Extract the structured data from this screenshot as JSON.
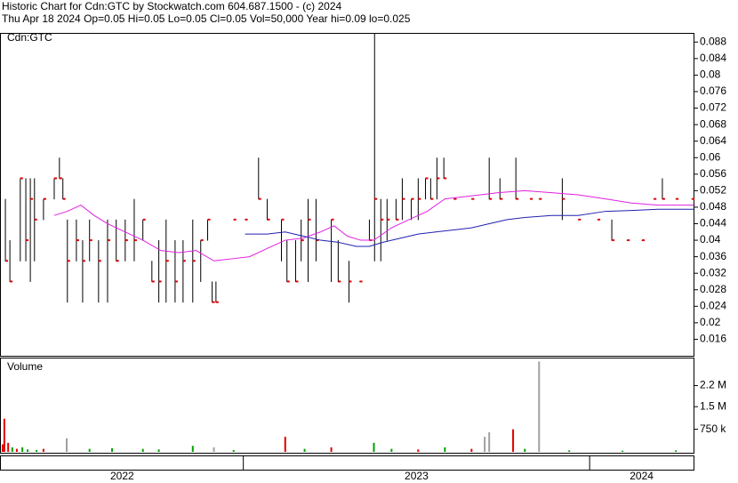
{
  "chart_data": [
    {
      "type": "hlc",
      "title": "Historic Chart for Cdn:GTC by Stockwatch.com 604.687.1500 - (c) 2024",
      "subtitle": "Thu Apr 18 2024  Op=0.05  Hi=0.05  Lo=0.05  Cl=0.05  Vol=50,000  Year hi=0.09  lo=0.025",
      "label": "Cdn:GTC",
      "color": "#000000",
      "close_color": "#e00000",
      "xlim": [
        2022.3,
        2024.3
      ],
      "ylim": [
        0.012,
        0.09
      ],
      "yticks": [
        0.016,
        0.02,
        0.024,
        0.028,
        0.032,
        0.036,
        0.04,
        0.044,
        0.048,
        0.052,
        0.056,
        0.06,
        0.064,
        0.068,
        0.072,
        0.076,
        0.08,
        0.084,
        0.088
      ],
      "x": [
        2022.313,
        2022.326,
        2022.356,
        2022.372,
        2022.385,
        2022.397,
        2022.423,
        2022.454,
        2022.469,
        2022.479,
        2022.492,
        2022.518,
        2022.536,
        2022.556,
        2022.582,
        2022.608,
        2022.633,
        2022.659,
        2022.685,
        2022.71,
        2022.736,
        2022.756,
        2022.777,
        2022.803,
        2022.826,
        2022.854,
        2022.877,
        2022.897,
        2022.91,
        2022.921,
        2022.972,
        2023.005,
        2023.044,
        2023.069,
        2023.11,
        2023.126,
        2023.151,
        2023.167,
        2023.187,
        2023.21,
        2023.254,
        2023.274,
        2023.305,
        2023.336,
        2023.364,
        2023.379,
        2023.397,
        2023.415,
        2023.441,
        2023.459,
        2023.485,
        2023.505,
        2023.526,
        2023.541,
        2023.559,
        2023.579,
        2023.608,
        2023.659,
        2023.71,
        2023.741,
        2023.787,
        2023.828,
        2023.854,
        2023.921,
        2023.967,
        2024.023,
        2024.064,
        2024.108,
        2024.151,
        2024.185,
        2024.21,
        2024.249,
        2024.295
      ],
      "high": [
        0.05,
        0.04,
        0.055,
        0.055,
        0.055,
        0.055,
        0.05,
        0.055,
        0.06,
        0.055,
        0.045,
        0.045,
        0.04,
        0.045,
        0.04,
        0.045,
        0.045,
        0.045,
        0.05,
        0.045,
        0.035,
        0.04,
        0.045,
        0.04,
        0.04,
        0.045,
        0.04,
        0.045,
        0.03,
        0.03,
        0.045,
        0.045,
        0.06,
        0.05,
        0.045,
        0.04,
        0.04,
        0.045,
        0.05,
        0.05,
        0.045,
        0.04,
        0.035,
        0.03,
        0.045,
        0.09,
        0.05,
        0.05,
        0.05,
        0.055,
        0.05,
        0.055,
        0.055,
        0.055,
        0.06,
        0.06,
        0.05,
        0.05,
        0.06,
        0.055,
        0.06,
        0.05,
        0.05,
        0.055,
        0.045,
        0.045,
        0.045,
        0.04,
        0.04,
        0.05,
        0.055,
        0.05,
        0.05
      ],
      "low": [
        0.035,
        0.03,
        0.035,
        0.035,
        0.03,
        0.035,
        0.045,
        0.05,
        0.055,
        0.05,
        0.025,
        0.035,
        0.025,
        0.035,
        0.025,
        0.025,
        0.035,
        0.035,
        0.035,
        0.04,
        0.03,
        0.025,
        0.025,
        0.025,
        0.025,
        0.025,
        0.03,
        0.04,
        0.025,
        0.025,
        0.045,
        0.045,
        0.05,
        0.045,
        0.035,
        0.03,
        0.03,
        0.035,
        0.03,
        0.035,
        0.03,
        0.03,
        0.025,
        0.03,
        0.04,
        0.035,
        0.035,
        0.04,
        0.045,
        0.045,
        0.045,
        0.045,
        0.05,
        0.05,
        0.05,
        0.055,
        0.05,
        0.05,
        0.05,
        0.05,
        0.05,
        0.05,
        0.05,
        0.045,
        0.045,
        0.045,
        0.04,
        0.04,
        0.04,
        0.05,
        0.05,
        0.05,
        0.05
      ],
      "close": [
        0.035,
        0.03,
        0.055,
        0.04,
        0.05,
        0.045,
        0.05,
        0.055,
        0.055,
        0.05,
        0.035,
        0.04,
        0.035,
        0.04,
        0.035,
        0.04,
        0.035,
        0.04,
        0.04,
        0.045,
        0.03,
        0.03,
        0.035,
        0.03,
        0.035,
        0.035,
        0.04,
        0.045,
        0.025,
        0.025,
        0.045,
        0.045,
        0.05,
        0.045,
        0.045,
        0.03,
        0.03,
        0.04,
        0.045,
        0.04,
        0.045,
        0.03,
        0.03,
        0.03,
        0.04,
        0.05,
        0.045,
        0.045,
        0.045,
        0.05,
        0.05,
        0.05,
        0.055,
        0.05,
        0.055,
        0.055,
        0.05,
        0.05,
        0.05,
        0.05,
        0.05,
        0.05,
        0.05,
        0.05,
        0.045,
        0.045,
        0.04,
        0.04,
        0.04,
        0.05,
        0.05,
        0.05,
        0.05
      ],
      "series": [
        {
          "color": "#e020e0",
          "x": [
            2022.454,
            2022.492,
            2022.531,
            2022.569,
            2022.608,
            2022.659,
            2022.71,
            2022.762,
            2022.813,
            2022.864,
            2022.915,
            2022.967,
            2023.018,
            2023.069,
            2023.121,
            2023.172,
            2023.223,
            2023.262,
            2023.3,
            2023.338,
            2023.377,
            2023.428,
            2023.479,
            2023.531,
            2023.582,
            2023.633,
            2023.685,
            2023.736,
            2023.813,
            2023.89,
            2023.967,
            2024.046,
            2024.121,
            2024.197,
            2024.3
          ],
          "values": [
            0.046,
            0.047,
            0.0485,
            0.046,
            0.044,
            0.042,
            0.04,
            0.0375,
            0.037,
            0.0375,
            0.035,
            0.0355,
            0.036,
            0.038,
            0.04,
            0.0405,
            0.042,
            0.0435,
            0.041,
            0.04,
            0.04,
            0.043,
            0.045,
            0.047,
            0.05,
            0.0505,
            0.051,
            0.0515,
            0.052,
            0.0515,
            0.051,
            0.05,
            0.049,
            0.0485,
            0.0485
          ]
        },
        {
          "color": "#2020b0",
          "x": [
            2023.005,
            2023.069,
            2023.121,
            2023.172,
            2023.223,
            2023.274,
            2023.326,
            2023.364,
            2023.403,
            2023.454,
            2023.505,
            2023.556,
            2023.608,
            2023.659,
            2023.71,
            2023.762,
            2023.813,
            2023.89,
            2023.967,
            2024.046,
            2024.121,
            2024.197,
            2024.3
          ],
          "values": [
            0.0415,
            0.0415,
            0.042,
            0.041,
            0.04,
            0.0395,
            0.0385,
            0.0385,
            0.0395,
            0.0405,
            0.0415,
            0.042,
            0.0425,
            0.043,
            0.044,
            0.045,
            0.0455,
            0.046,
            0.046,
            0.047,
            0.0472,
            0.0475,
            0.0475
          ]
        }
      ]
    },
    {
      "type": "bar",
      "label": "Volume",
      "xlim": [
        2022.3,
        2024.3
      ],
      "ylim": [
        0,
        3100000
      ],
      "yticks": [
        {
          "value": 750000,
          "label": "750 k"
        },
        {
          "value": 1500000,
          "label": "1.5 M"
        },
        {
          "value": 2200000,
          "label": "2.2 M"
        }
      ],
      "xticks": [
        2023,
        2024
      ],
      "year_labels": [
        "2022",
        "2023",
        "2024"
      ],
      "x": [
        2022.305,
        2022.31,
        2022.321,
        2022.333,
        2022.346,
        2022.362,
        2022.377,
        2022.403,
        2022.423,
        2022.49,
        2022.556,
        2022.621,
        2022.71,
        2022.756,
        2022.854,
        2022.915,
        2022.972,
        2023.121,
        2023.177,
        2023.254,
        2023.377,
        2023.428,
        2023.505,
        2023.582,
        2023.659,
        2023.697,
        2023.71,
        2023.779,
        2023.813,
        2023.854,
        2023.941,
        2024.095,
        2024.249
      ],
      "values": [
        250000,
        1100000,
        300000,
        150000,
        100000,
        150000,
        80000,
        60000,
        100000,
        450000,
        100000,
        120000,
        100000,
        80000,
        200000,
        150000,
        60000,
        500000,
        100000,
        150000,
        300000,
        100000,
        80000,
        150000,
        100000,
        500000,
        650000,
        750000,
        100000,
        3000000,
        50000,
        40000,
        50000
      ],
      "colors": [
        "#e00000",
        "#e00000",
        "#e00000",
        "#00a000",
        "#e00000",
        "#00a000",
        "#00a000",
        "#00a000",
        "#e00000",
        "#a0a0a0",
        "#00a000",
        "#00a000",
        "#00a000",
        "#00a000",
        "#00a000",
        "#a0a0a0",
        "#00a000",
        "#e00000",
        "#00a000",
        "#e00000",
        "#00a000",
        "#00a000",
        "#e00000",
        "#00a000",
        "#e00000",
        "#a0a0a0",
        "#a0a0a0",
        "#e00000",
        "#00a000",
        "#a0a0a0",
        "#00a000",
        "#00a000",
        "#00a000"
      ]
    }
  ]
}
